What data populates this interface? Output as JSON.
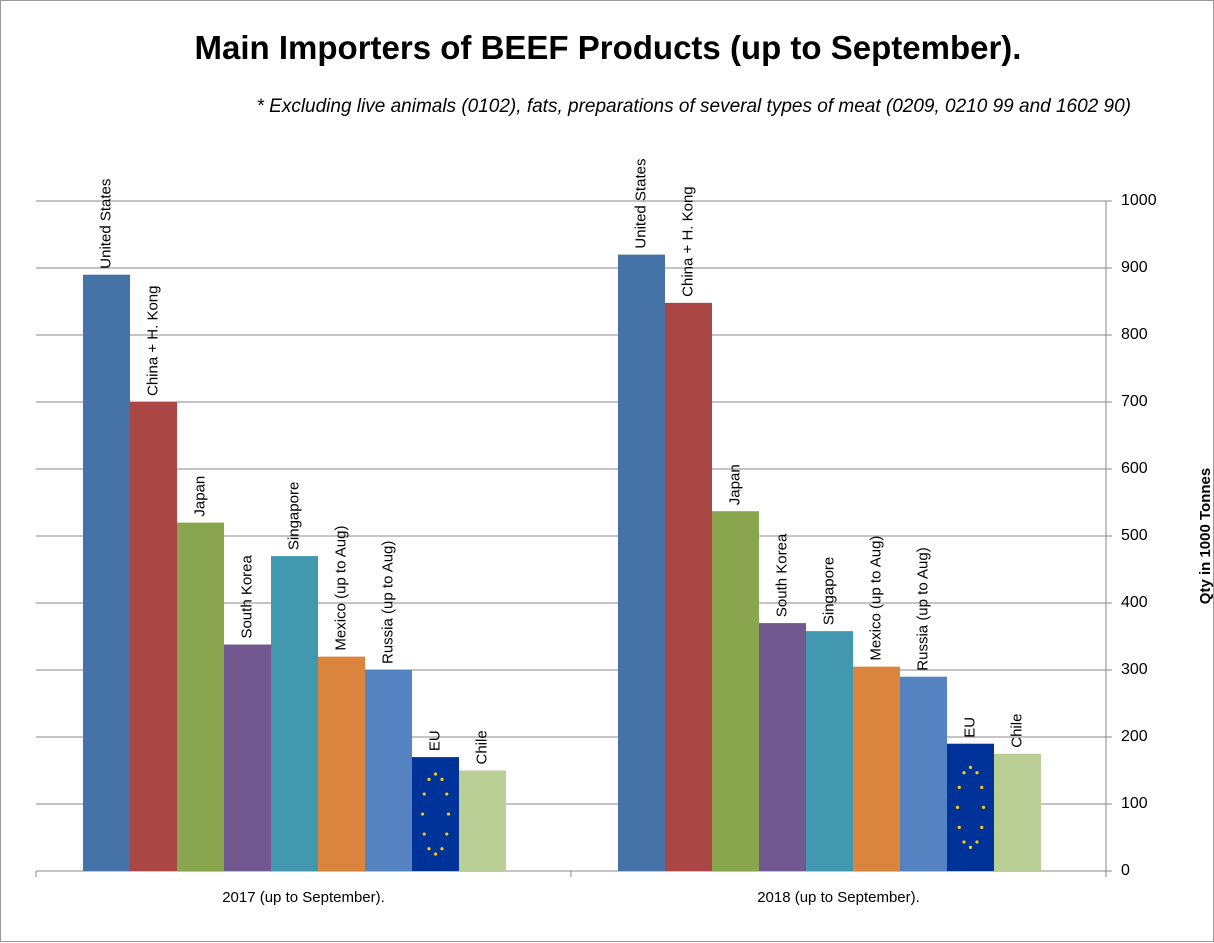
{
  "chart_data": {
    "type": "bar",
    "title": "Main Importers of BEEF Products (up to September).",
    "subtitle": "* Excluding live animals (0102), fats, preparations of several types of meat (0209, 0210 99 and 1602 90)",
    "y_label": "Qty in 1000 Tonnes",
    "categories": [
      "2017 (up to September).",
      "2018 (up to September)."
    ],
    "series": [
      {
        "name": "United States",
        "color": "#4572a7",
        "values": [
          890,
          920
        ]
      },
      {
        "name": "China + H. Kong",
        "color": "#aa4643",
        "values": [
          700,
          848
        ]
      },
      {
        "name": "Japan",
        "color": "#89a54e",
        "values": [
          520,
          537
        ]
      },
      {
        "name": "South Korea",
        "color": "#71588f",
        "values": [
          338,
          370
        ]
      },
      {
        "name": "Singapore",
        "color": "#4198af",
        "values": [
          470,
          358
        ]
      },
      {
        "name": "Mexico (up to Aug)",
        "color": "#db843d",
        "values": [
          320,
          305
        ]
      },
      {
        "name": "Russia (up to Aug)",
        "color": "#5582c0",
        "values": [
          300,
          290
        ]
      },
      {
        "name": "EU",
        "color": "#003399",
        "values": [
          170,
          190
        ]
      },
      {
        "name": "Chile",
        "color": "#b9cf96",
        "values": [
          150,
          175
        ]
      }
    ],
    "ylim": [
      0,
      1000
    ],
    "yticks": [
      0,
      100,
      200,
      300,
      400,
      500,
      600,
      700,
      800,
      900,
      1000
    ],
    "grid": true
  }
}
